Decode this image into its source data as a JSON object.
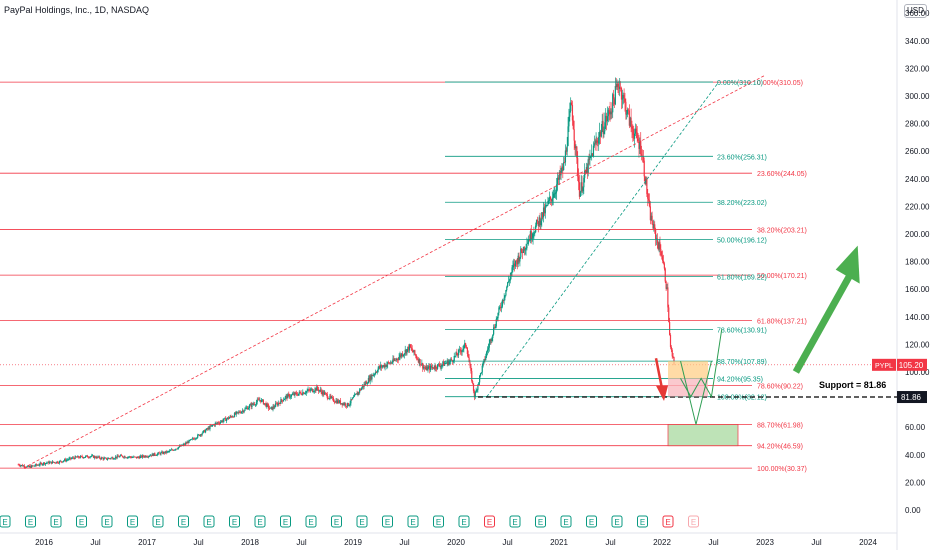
{
  "title": "PayPal Holdings, Inc., 1D, NASDAQ",
  "currency": "USD",
  "colors": {
    "price_line": "#f23645",
    "fib_red": "#f23645",
    "fib_green": "#089981",
    "candle_up": "#089981",
    "candle_down": "#f23645",
    "arrow_green": "#4caf50",
    "axis_text": "#131722"
  },
  "chart_data": {
    "type": "candlestick",
    "title": "PayPal Holdings, Inc., 1D, NASDAQ",
    "x_ticks": [
      "2016",
      "Jul",
      "2017",
      "Jul",
      "2018",
      "Jul",
      "2019",
      "Jul",
      "2020",
      "Jul",
      "2021",
      "Jul",
      "2022",
      "Jul",
      "2023",
      "Jul",
      "2024"
    ],
    "y_ticks": [
      "0.00",
      "20.00",
      "40.00",
      "60.00",
      "80.00",
      "100.00",
      "120.00",
      "140.00",
      "160.00",
      "180.00",
      "200.00",
      "220.00",
      "240.00",
      "260.00",
      "280.00",
      "300.00",
      "320.00",
      "340.00",
      "360.00"
    ],
    "ylim": [
      0,
      365
    ],
    "price_label": {
      "symbol": "PYPL",
      "value": "105.20"
    },
    "support": {
      "label": "Support = 81.86",
      "value": "81.86"
    },
    "fib_red": [
      {
        "label": "0.00%(310.05)",
        "value": 310.05
      },
      {
        "label": "23.60%(244.05)",
        "value": 244.05
      },
      {
        "label": "38.20%(203.21)",
        "value": 203.21
      },
      {
        "label": "50.00%(170.21)",
        "value": 170.21
      },
      {
        "label": "61.80%(137.21)",
        "value": 137.21
      },
      {
        "label": "78.60%(90.22)",
        "value": 90.22
      },
      {
        "label": "88.70%(61.98)",
        "value": 61.98
      },
      {
        "label": "94.20%(46.59)",
        "value": 46.59
      },
      {
        "label": "100.00%(30.37)",
        "value": 30.37
      }
    ],
    "fib_green": [
      {
        "label": "0.00%(310.10)",
        "value": 310.1
      },
      {
        "label": "23.60%(256.31)",
        "value": 256.31
      },
      {
        "label": "38.20%(223.02)",
        "value": 223.02
      },
      {
        "label": "50.00%(196.12)",
        "value": 196.12
      },
      {
        "label": "61.80%(169.22)",
        "value": 169.22
      },
      {
        "label": "78.60%(130.91)",
        "value": 130.91
      },
      {
        "label": "88.70%(107.89)",
        "value": 107.89
      },
      {
        "label": "94.20%(95.35)",
        "value": 95.35
      },
      {
        "label": "100.00%(82.12)",
        "value": 82.12
      }
    ],
    "earnings_markers": [
      "E",
      "E",
      "E",
      "E",
      "E",
      "E",
      "E",
      "E",
      "E",
      "E",
      "E",
      "E",
      "E",
      "E",
      "E",
      "E",
      "E",
      "E",
      "E",
      "E",
      "E",
      "E",
      "E",
      "E",
      "E",
      "E",
      "E",
      "E"
    ],
    "price_path": [
      [
        2015.75,
        33
      ],
      [
        2015.85,
        31
      ],
      [
        2016.0,
        34
      ],
      [
        2016.15,
        35
      ],
      [
        2016.3,
        38
      ],
      [
        2016.45,
        39
      ],
      [
        2016.6,
        37
      ],
      [
        2016.75,
        39
      ],
      [
        2016.9,
        38
      ],
      [
        2017.05,
        40
      ],
      [
        2017.2,
        42
      ],
      [
        2017.35,
        47
      ],
      [
        2017.5,
        54
      ],
      [
        2017.65,
        62
      ],
      [
        2017.8,
        67
      ],
      [
        2017.95,
        73
      ],
      [
        2018.1,
        80
      ],
      [
        2018.2,
        73
      ],
      [
        2018.35,
        82
      ],
      [
        2018.5,
        85
      ],
      [
        2018.65,
        88
      ],
      [
        2018.8,
        80
      ],
      [
        2018.95,
        76
      ],
      [
        2019.1,
        90
      ],
      [
        2019.25,
        103
      ],
      [
        2019.4,
        108
      ],
      [
        2019.55,
        118
      ],
      [
        2019.7,
        102
      ],
      [
        2019.85,
        105
      ],
      [
        2019.95,
        108
      ],
      [
        2020.1,
        120
      ],
      [
        2020.18,
        82
      ],
      [
        2020.25,
        102
      ],
      [
        2020.4,
        140
      ],
      [
        2020.55,
        175
      ],
      [
        2020.7,
        196
      ],
      [
        2020.85,
        215
      ],
      [
        2020.95,
        230
      ],
      [
        2021.05,
        250
      ],
      [
        2021.12,
        295
      ],
      [
        2021.2,
        230
      ],
      [
        2021.35,
        265
      ],
      [
        2021.5,
        290
      ],
      [
        2021.58,
        310
      ],
      [
        2021.7,
        278
      ],
      [
        2021.8,
        262
      ],
      [
        2021.88,
        215
      ],
      [
        2021.95,
        195
      ],
      [
        2022.0,
        185
      ],
      [
        2022.05,
        158
      ],
      [
        2022.08,
        118
      ],
      [
        2022.12,
        105
      ]
    ],
    "projection_v": [
      [
        2022.18,
        107.89
      ],
      [
        2022.33,
        62
      ],
      [
        2022.48,
        107.89
      ]
    ],
    "projection_w": [
      [
        2022.18,
        95.35
      ],
      [
        2022.28,
        82.12
      ],
      [
        2022.38,
        95.35
      ],
      [
        2022.48,
        82.12
      ],
      [
        2022.58,
        130.91
      ]
    ],
    "big_arrow": [
      [
        2023.3,
        100
      ],
      [
        2023.9,
        180
      ]
    ]
  }
}
